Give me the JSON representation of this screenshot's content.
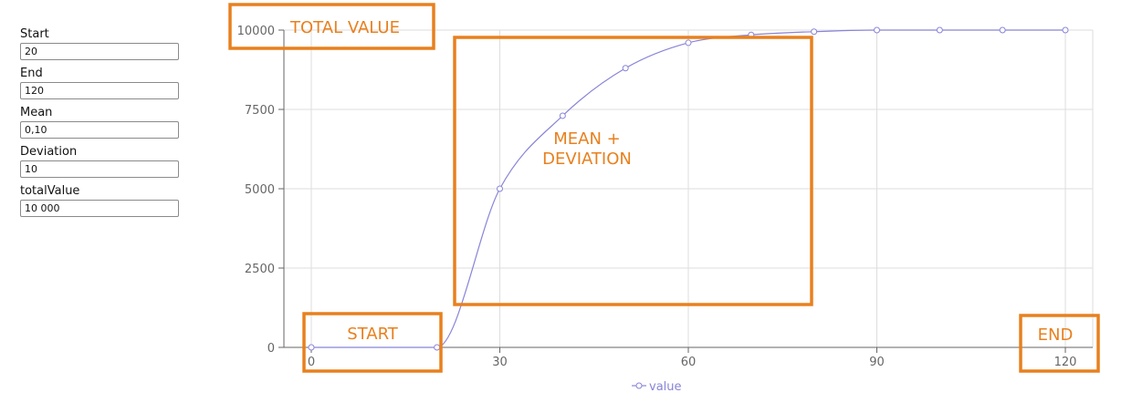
{
  "form": {
    "fields": [
      {
        "label": "Start",
        "value": "20"
      },
      {
        "label": "End",
        "value": "120"
      },
      {
        "label": "Mean",
        "value": "0,10"
      },
      {
        "label": "Deviation",
        "value": "10"
      },
      {
        "label": "totalValue",
        "value": "10 000"
      }
    ]
  },
  "colors": {
    "series": "#8884d8",
    "annotation": "#e8801e",
    "grid": "#dddddd",
    "axis": "#666666"
  },
  "chart_data": {
    "type": "line",
    "title": "",
    "xlabel": "",
    "ylabel": "",
    "xlim": [
      0,
      120
    ],
    "ylim": [
      0,
      10000
    ],
    "x_ticks": [
      "0",
      "30",
      "60",
      "90",
      "120"
    ],
    "y_ticks": [
      "0",
      "2500",
      "5000",
      "7500",
      "10000"
    ],
    "grid": true,
    "legend_position": "bottom",
    "series": [
      {
        "name": "value",
        "x": [
          0,
          20,
          30,
          40,
          50,
          60,
          70,
          80,
          90,
          100,
          110,
          120
        ],
        "y": [
          0,
          0,
          5000,
          7300,
          8800,
          9600,
          9850,
          9950,
          10000,
          10000,
          10000,
          10000
        ]
      }
    ],
    "annotations": [
      {
        "id": "total-value",
        "text": "TOTAL VALUE"
      },
      {
        "id": "mean-deviation",
        "text": "MEAN +\nDEVIATION"
      },
      {
        "id": "start",
        "text": "START"
      },
      {
        "id": "end",
        "text": "END"
      }
    ]
  }
}
